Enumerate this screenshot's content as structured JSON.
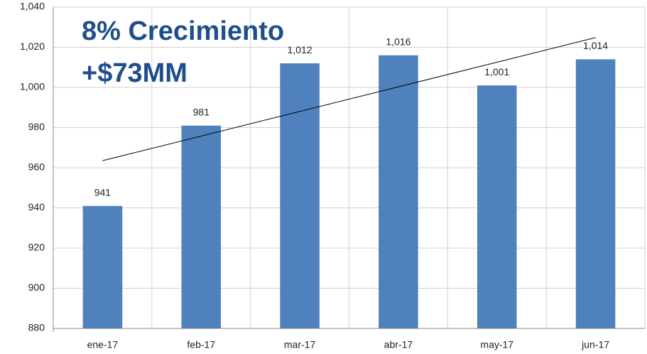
{
  "chart_data": {
    "type": "bar",
    "annotations": [
      "8% Crecimiento",
      "+$73MM"
    ],
    "categories": [
      "ene-17",
      "feb-17",
      "mar-17",
      "abr-17",
      "may-17",
      "jun-17"
    ],
    "values": [
      941,
      981,
      1012,
      1016,
      1001,
      1014
    ],
    "value_labels": [
      "941",
      "981",
      "1,012",
      "1,016",
      "1,001",
      "1,014"
    ],
    "color": "#4f81bd",
    "ylim": [
      880,
      1040
    ],
    "yticks": [
      880,
      900,
      920,
      940,
      960,
      980,
      {
        "value": 1000,
        "label": "1,000"
      },
      {
        "value": 1020,
        "label": "1,020"
      },
      {
        "value": 1040,
        "label": "1,040"
      }
    ],
    "grid": true,
    "trendline": true
  }
}
